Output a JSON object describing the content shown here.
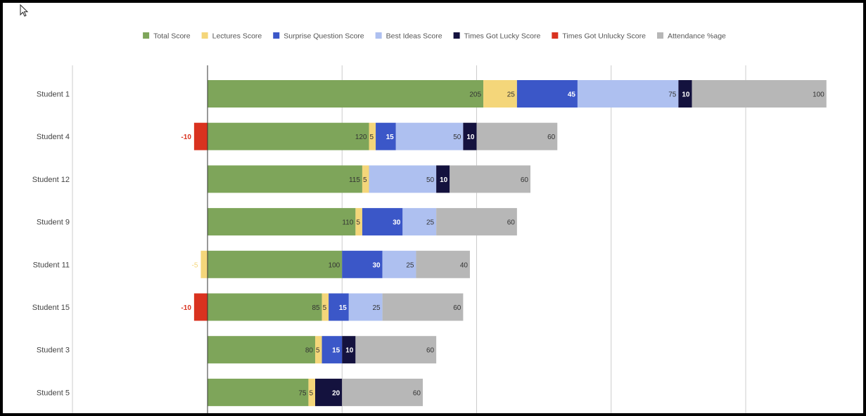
{
  "chart_data": {
    "type": "bar",
    "orientation": "horizontal",
    "stacked": true,
    "title": "",
    "xlabel": "",
    "ylabel": "",
    "grid": true,
    "legend_position": "top",
    "categories": [
      "Student 1",
      "Student 4",
      "Student 12",
      "Student 9",
      "Student 11",
      "Student 15",
      "Student 3",
      "Student 5"
    ],
    "series": [
      {
        "name": "Total Score",
        "color": "#7ea55a",
        "label_color": "#333333",
        "values": [
          205,
          120,
          115,
          110,
          100,
          85,
          80,
          75
        ],
        "labels": [
          "205",
          "120",
          "115",
          "110",
          "100",
          "85",
          "80",
          "75"
        ]
      },
      {
        "name": "Lectures Score",
        "color": "#f4d67a",
        "label_color": "#333333",
        "values": [
          25,
          5,
          5,
          5,
          -5,
          5,
          5,
          5
        ],
        "labels": [
          "25",
          "5",
          "5",
          "5",
          "-5",
          "5",
          "5",
          "5"
        ]
      },
      {
        "name": "Surprise Question Score",
        "color": "#3b57c8",
        "label_color": "#ffffff",
        "values": [
          45,
          15,
          0,
          30,
          30,
          15,
          15,
          0
        ],
        "labels": [
          "45",
          "15",
          "",
          "30",
          "30",
          "15",
          "15",
          ""
        ]
      },
      {
        "name": "Best Ideas Score",
        "color": "#aec0f0",
        "label_color": "#333333",
        "values": [
          75,
          50,
          50,
          25,
          25,
          25,
          0,
          0
        ],
        "labels": [
          "75",
          "50",
          "50",
          "25",
          "25",
          "25",
          "0",
          "0"
        ]
      },
      {
        "name": "Times Got Lucky Score",
        "color": "#14123e",
        "label_color": "#ffffff",
        "values": [
          10,
          10,
          10,
          0,
          0,
          0,
          10,
          20
        ],
        "labels": [
          "10",
          "10",
          "10",
          "0",
          "0",
          "",
          "10",
          "20"
        ]
      },
      {
        "name": "Times Got Unlucky Score",
        "color": "#d9321f",
        "label_color": "#ffffff",
        "values": [
          0,
          -10,
          0,
          0,
          0,
          -10,
          0,
          0
        ],
        "labels": [
          "0",
          "-10",
          "0",
          "0",
          "0",
          "-10",
          "0",
          "0"
        ]
      },
      {
        "name": "Attendance %age",
        "color": "#b7b7b7",
        "label_color": "#333333",
        "values": [
          100,
          60,
          60,
          60,
          40,
          60,
          60,
          60
        ],
        "labels": [
          "100",
          "60",
          "60",
          "60",
          "40",
          "60",
          "60",
          "60"
        ]
      }
    ]
  }
}
